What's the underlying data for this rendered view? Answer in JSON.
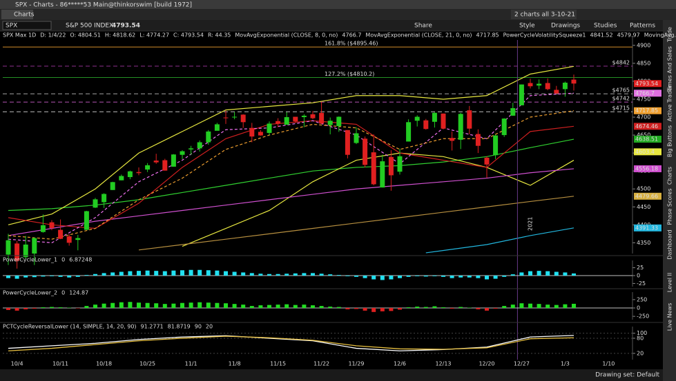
{
  "window": {
    "title": "SPX - Charts - 86*****53 Main@thinkorswim [build 1972]",
    "tab": "Charts",
    "layout": "2 charts all 3-10-21"
  },
  "toolbar": {
    "symbol": "SPX",
    "description": "S&P 500 INDEX",
    "last": "4793.54",
    "buttons": [
      "Share",
      "Style",
      "Drawings",
      "Studies",
      "Patterns"
    ]
  },
  "side_tabs": [
    "Trade",
    "Times And Sales",
    "Active Trader",
    "Big Buttons",
    "Charts",
    "Phase Scores",
    "Dashboard",
    "Level II",
    "Live News"
  ],
  "status": "Drawing set: Default",
  "chart_data": [
    {
      "type": "candlestick",
      "header": [
        {
          "text": "SPX Max 1D",
          "color": "#ffffff"
        },
        {
          "text": "D: 1/4/22",
          "color": "#cccccc"
        },
        {
          "text": "O: 4804.51",
          "color": "#cccccc"
        },
        {
          "text": "H: 4818.62",
          "color": "#cccccc"
        },
        {
          "text": "L: 4774.27",
          "color": "#cccccc"
        },
        {
          "text": "C: 4793.54",
          "color": "#cccccc"
        },
        {
          "text": "R: 44.35",
          "color": "#cccccc"
        },
        {
          "text": "MovAvgExponential (CLOSE, 8, 0, no)",
          "color": "#e070e0"
        },
        {
          "text": "4766.7",
          "color": "#e070e0"
        },
        {
          "text": "MovAvgExponential (CLOSE, 21, 0, no)",
          "color": "#f0a030"
        },
        {
          "text": "4717.85",
          "color": "#f0a030"
        },
        {
          "text": "PowerCycleVolatilitySqueeze1",
          "color": "#30e030"
        },
        {
          "text": "4841.52",
          "color": "#e8e840"
        },
        {
          "text": "4579.97",
          "color": "#e8e840"
        },
        {
          "text": "MovingAvg...",
          "color": "#e8e840"
        }
      ],
      "categories": [
        null,
        "10/4",
        null,
        null,
        null,
        null,
        "10/11",
        null,
        null,
        null,
        null,
        "10/18",
        null,
        null,
        null,
        null,
        "10/25",
        null,
        null,
        null,
        null,
        "11/1",
        null,
        null,
        null,
        null,
        "11/8",
        null,
        null,
        null,
        null,
        "11/15",
        null,
        null,
        null,
        null,
        "11/22",
        null,
        null,
        null,
        "11/29",
        null,
        null,
        null,
        null,
        "12/6",
        null,
        null,
        null,
        null,
        "12/13",
        null,
        null,
        null,
        null,
        "12/20",
        null,
        null,
        null,
        "12/27",
        null,
        null,
        null,
        null,
        "1/3",
        null
      ],
      "future_label": "1/10",
      "year_label": "2021",
      "candles": [
        [
          4317,
          4375,
          4288,
          4357
        ],
        [
          4348,
          4355,
          4278,
          4300
        ],
        [
          4310,
          4369,
          4305,
          4345
        ],
        [
          4320,
          4365,
          4288,
          4363
        ],
        [
          4380,
          4429,
          4378,
          4399
        ],
        [
          4407,
          4413,
          4385,
          4391
        ],
        [
          4386,
          4415,
          4360,
          4361
        ],
        [
          4368,
          4374,
          4342,
          4350
        ],
        [
          4358,
          4372,
          4329,
          4363
        ],
        [
          4386,
          4439,
          4386,
          4438
        ],
        [
          4448,
          4475,
          4447,
          4471
        ],
        [
          4463,
          4488,
          4447,
          4486
        ],
        [
          4497,
          4520,
          4497,
          4519
        ],
        [
          4524,
          4540,
          4524,
          4536
        ],
        [
          4533,
          4551,
          4527,
          4549
        ],
        [
          4547,
          4560,
          4538,
          4544
        ],
        [
          4554,
          4572,
          4547,
          4566
        ],
        [
          4579,
          4598,
          4570,
          4574
        ],
        [
          4580,
          4584,
          4551,
          4551
        ],
        [
          4562,
          4597,
          4562,
          4596
        ],
        [
          4595,
          4608,
          4583,
          4605
        ],
        [
          4610,
          4620,
          4595,
          4613
        ],
        [
          4613,
          4635,
          4604,
          4630
        ],
        [
          4630,
          4664,
          4623,
          4660
        ],
        [
          4662,
          4684,
          4663,
          4680
        ],
        [
          4699,
          4718,
          4681,
          4697
        ],
        [
          4701,
          4714,
          4694,
          4701
        ],
        [
          4707,
          4708,
          4670,
          4686
        ],
        [
          4670,
          4684,
          4630,
          4646
        ],
        [
          4659,
          4664,
          4648,
          4649
        ],
        [
          4656,
          4688,
          4650,
          4682
        ],
        [
          4689,
          4697,
          4672,
          4682
        ],
        [
          4679,
          4714,
          4679,
          4700
        ],
        [
          4701,
          4701,
          4684,
          4688
        ],
        [
          4700,
          4708,
          4672,
          4704
        ],
        [
          4708,
          4717,
          4694,
          4697
        ],
        [
          4712,
          4743,
          4681,
          4682
        ],
        [
          4678,
          4699,
          4652,
          4690
        ],
        [
          4675,
          4702,
          4659,
          4701
        ],
        [
          4664,
          4664,
          4585,
          4595
        ],
        [
          4628,
          4672,
          4625,
          4655
        ],
        [
          4640,
          4646,
          4560,
          4567
        ],
        [
          4602,
          4652,
          4510,
          4513
        ],
        [
          4504,
          4595,
          4504,
          4577
        ],
        [
          4589,
          4608,
          4495,
          4538
        ],
        [
          4548,
          4612,
          4540,
          4591
        ],
        [
          4632,
          4694,
          4632,
          4686
        ],
        [
          4690,
          4705,
          4674,
          4701
        ],
        [
          4691,
          4695,
          4665,
          4667
        ],
        [
          4687,
          4713,
          4671,
          4712
        ],
        [
          4710,
          4710,
          4666,
          4668
        ],
        [
          4642,
          4660,
          4607,
          4634
        ],
        [
          4637,
          4712,
          4611,
          4709
        ],
        [
          4719,
          4731,
          4652,
          4668
        ],
        [
          4653,
          4666,
          4600,
          4620
        ],
        [
          4587,
          4591,
          4531,
          4568
        ],
        [
          4594,
          4651,
          4583,
          4649
        ],
        [
          4650,
          4697,
          4645,
          4696
        ],
        [
          4704,
          4740,
          4704,
          4725
        ],
        [
          4733,
          4791,
          4733,
          4791
        ],
        [
          4795,
          4807,
          4780,
          4786
        ],
        [
          4788,
          4805,
          4778,
          4793
        ],
        [
          4795,
          4808,
          4775,
          4778
        ],
        [
          4776,
          4787,
          4765,
          4766
        ],
        [
          4778,
          4799,
          4757,
          4796
        ],
        [
          4804.51,
          4818.62,
          4774.27,
          4793.54
        ]
      ],
      "up_color": "#22cc22",
      "down_color": "#e02020",
      "lines": [
        {
          "color": "#30d030",
          "x": [
            0,
            5,
            10,
            15,
            20,
            25,
            30,
            35,
            40,
            45,
            50,
            55,
            60,
            65
          ],
          "values": [
            4440,
            4445,
            4455,
            4470,
            4490,
            4510,
            4530,
            4550,
            4560,
            4565,
            4575,
            4590,
            4615,
            4638.51
          ]
        },
        {
          "color": "#e8e840",
          "x": [
            0,
            5,
            10,
            15,
            20,
            25,
            30,
            35,
            40,
            45,
            50,
            55,
            60,
            65
          ],
          "values": [
            4400,
            4430,
            4500,
            4600,
            4660,
            4720,
            4730,
            4740,
            4760,
            4760,
            4750,
            4760,
            4820,
            4841.52
          ]
        },
        {
          "color": "#e8e840",
          "x": [
            20,
            25,
            30,
            35,
            40,
            45,
            50,
            55,
            60,
            65
          ],
          "values": [
            4340,
            4390,
            4440,
            4520,
            4580,
            4600,
            4590,
            4560,
            4510,
            4579.97
          ]
        },
        {
          "color": "#d050d0",
          "x": [
            0,
            5,
            10,
            15,
            20,
            25,
            30,
            35,
            40,
            45,
            50,
            55,
            60,
            65
          ],
          "values": [
            4370,
            4390,
            4410,
            4425,
            4440,
            4455,
            4470,
            4485,
            4500,
            4510,
            4520,
            4530,
            4545,
            4556.18
          ]
        },
        {
          "color": "#b89040",
          "x": [
            15,
            20,
            25,
            30,
            35,
            40,
            45,
            50,
            55,
            60,
            65
          ],
          "values": [
            4330,
            4345,
            4360,
            4375,
            4390,
            4405,
            4420,
            4435,
            4450,
            4465,
            4479.66
          ]
        },
        {
          "color": "#22b8e0",
          "x": [
            48,
            55,
            60,
            65
          ],
          "values": [
            4322,
            4345,
            4370,
            4391.33
          ]
        },
        {
          "color": "#d02020",
          "x": [
            0,
            5,
            10,
            15,
            20,
            25,
            30,
            35,
            40,
            45,
            50,
            55,
            60,
            65
          ],
          "values": [
            4420,
            4400,
            4390,
            4460,
            4560,
            4640,
            4680,
            4690,
            4680,
            4600,
            4580,
            4560,
            4660,
            4674.46
          ]
        },
        {
          "color": "#f070f0",
          "dash": true,
          "x": [
            0,
            5,
            10,
            15,
            20,
            25,
            30,
            35,
            40,
            45,
            50,
            55,
            60,
            65
          ],
          "values": [
            4360,
            4350,
            4420,
            4520,
            4580,
            4665,
            4670,
            4690,
            4650,
            4570,
            4670,
            4640,
            4760,
            4766.7
          ]
        },
        {
          "color": "#f0a030",
          "dash": true,
          "x": [
            0,
            5,
            10,
            15,
            20,
            25,
            30,
            35,
            40,
            45,
            50,
            55,
            60,
            65
          ],
          "values": [
            4370,
            4360,
            4390,
            4470,
            4530,
            4610,
            4650,
            4680,
            4670,
            4610,
            4640,
            4640,
            4700,
            4717.85
          ]
        }
      ],
      "levels": [
        {
          "value": 4895.46,
          "label": "161.8% ($4895.46)",
          "color": "#f0a030"
        },
        {
          "value": 4810.2,
          "label": "127.2% ($4810.2)",
          "color": "#30c030"
        },
        {
          "value": 4842,
          "label": "$4842",
          "color": "#c040c0"
        },
        {
          "value": 4765,
          "label": "$4765",
          "color": "#dddddd"
        },
        {
          "value": 4742,
          "label": "$4742",
          "color": "#f070f0"
        },
        {
          "value": 4715,
          "label": "$4715",
          "color": "#dddddd"
        }
      ],
      "axis_markers": [
        {
          "value": 4793.54,
          "color": "#e02020"
        },
        {
          "value": 4766.7,
          "color": "#e070e0"
        },
        {
          "value": 4717.85,
          "color": "#f0a030"
        },
        {
          "value": 4674.46,
          "color": "#d02020"
        },
        {
          "value": 4638.51,
          "color": "#22aa22"
        },
        {
          "value": 4603.4,
          "color": "#e8e840"
        },
        {
          "value": 4556.18,
          "color": "#d050d0"
        },
        {
          "value": 4479.66,
          "color": "#d8b040"
        },
        {
          "value": 4391.33,
          "color": "#22b8e0"
        }
      ],
      "ylim": [
        4320,
        4915
      ],
      "yticks": [
        4900,
        4850,
        4800,
        4750,
        4700,
        4650,
        4600,
        4550,
        4500,
        4450,
        4400,
        4350
      ]
    },
    {
      "type": "bar",
      "header": [
        {
          "text": "PowerCycleLower_1",
          "color": "#ffffff"
        },
        {
          "text": "0",
          "color": "#ffffff"
        },
        {
          "text": "6.87248",
          "color": "#22e0f0"
        }
      ],
      "color": "#22e0f0",
      "negative_color": "#22e0f0",
      "values": [
        -8,
        -10,
        -6,
        -5,
        -3,
        -2,
        -4,
        -6,
        -4,
        2,
        5,
        8,
        10,
        12,
        14,
        15,
        16,
        15,
        14,
        16,
        17,
        18,
        18,
        17,
        16,
        14,
        12,
        10,
        8,
        6,
        5,
        5,
        6,
        7,
        8,
        8,
        6,
        4,
        2,
        -2,
        -4,
        -8,
        -12,
        -14,
        -12,
        -8,
        -4,
        -2,
        -3,
        -2,
        -4,
        -8,
        -6,
        -6,
        -8,
        -12,
        -10,
        -4,
        4,
        10,
        14,
        15,
        14,
        12,
        10,
        6.87248
      ],
      "ylim": [
        -35,
        35
      ],
      "yticks": [
        25,
        0,
        -25
      ]
    },
    {
      "type": "bar",
      "header": [
        {
          "text": "PowerCycleLower_2",
          "color": "#ffffff"
        },
        {
          "text": "0",
          "color": "#ffffff"
        },
        {
          "text": "124.87",
          "color": "#22dd22"
        }
      ],
      "color": "#22dd22",
      "negative_color": "#e02020",
      "values": [
        -60,
        -80,
        -40,
        -20,
        20,
        30,
        20,
        10,
        -10,
        60,
        100,
        130,
        150,
        170,
        180,
        160,
        150,
        140,
        120,
        130,
        150,
        160,
        170,
        160,
        150,
        140,
        120,
        100,
        60,
        80,
        90,
        100,
        110,
        90,
        100,
        80,
        60,
        40,
        30,
        -40,
        -30,
        -80,
        -120,
        -100,
        -90,
        -50,
        20,
        40,
        30,
        50,
        20,
        -20,
        30,
        10,
        -40,
        -80,
        -20,
        60,
        100,
        140,
        130,
        120,
        100,
        90,
        110,
        124.87
      ],
      "ylim": [
        -350,
        350
      ],
      "yticks": [
        250,
        0,
        -250
      ]
    },
    {
      "type": "line",
      "header": [
        {
          "text": "PCTCycleReversalLower (14, SIMPLE, 14, 20, 90)",
          "color": "#ffffff"
        },
        {
          "text": "91.2771",
          "color": "#ffffff"
        },
        {
          "text": "81.8719",
          "color": "#e8e840"
        },
        {
          "text": "90",
          "color": "#22aaff"
        },
        {
          "text": "20",
          "color": "#e02020"
        }
      ],
      "series": [
        {
          "color": "#ffffff",
          "x": [
            0,
            5,
            10,
            15,
            20,
            25,
            30,
            35,
            40,
            45,
            50,
            55,
            60,
            65
          ],
          "values": [
            40,
            50,
            60,
            75,
            85,
            90,
            80,
            70,
            40,
            30,
            35,
            45,
            85,
            91.2771
          ]
        },
        {
          "color": "#e8c040",
          "x": [
            0,
            5,
            10,
            15,
            20,
            25,
            30,
            35,
            40,
            45,
            50,
            55,
            60,
            65
          ],
          "values": [
            30,
            40,
            55,
            70,
            80,
            88,
            82,
            72,
            50,
            38,
            36,
            42,
            78,
            81.8719
          ]
        }
      ],
      "ylim": [
        -5,
        110
      ],
      "yticks": [
        100,
        80,
        20
      ]
    }
  ]
}
